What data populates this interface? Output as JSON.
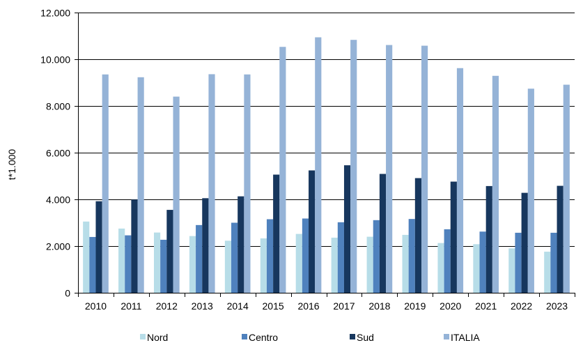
{
  "chart_data": {
    "type": "bar",
    "ylabel": "t*1.000",
    "xlabel": "",
    "title": "",
    "ylim": [
      0,
      12000
    ],
    "yticks": [
      0,
      2000,
      4000,
      6000,
      8000,
      10000,
      12000
    ],
    "ytick_labels": [
      "0",
      "2.000",
      "4.000",
      "6.000",
      "8.000",
      "10.000",
      "12.000"
    ],
    "grid": true,
    "legend_position": "bottom",
    "categories": [
      "2010",
      "2011",
      "2012",
      "2013",
      "2014",
      "2015",
      "2016",
      "2017",
      "2018",
      "2019",
      "2020",
      "2021",
      "2022",
      "2023"
    ],
    "series": [
      {
        "name": "Nord",
        "color": "#b7dde8",
        "values": [
          3050,
          2750,
          2580,
          2430,
          2230,
          2330,
          2520,
          2360,
          2400,
          2480,
          2130,
          2080,
          1900,
          1760
        ]
      },
      {
        "name": "Centro",
        "color": "#4f81bd",
        "values": [
          2390,
          2460,
          2270,
          2900,
          3000,
          3150,
          3180,
          3020,
          3110,
          3160,
          2720,
          2620,
          2570,
          2570
        ]
      },
      {
        "name": "Sud",
        "color": "#17375e",
        "values": [
          3920,
          3990,
          3550,
          4050,
          4130,
          5060,
          5240,
          5460,
          5090,
          4910,
          4760,
          4570,
          4280,
          4580
        ]
      },
      {
        "name": "ITALIA",
        "color": "#95b3d7",
        "values": [
          9350,
          9230,
          8400,
          9360,
          9350,
          10530,
          10940,
          10830,
          10610,
          10580,
          9620,
          9290,
          8740,
          8910
        ]
      }
    ]
  }
}
